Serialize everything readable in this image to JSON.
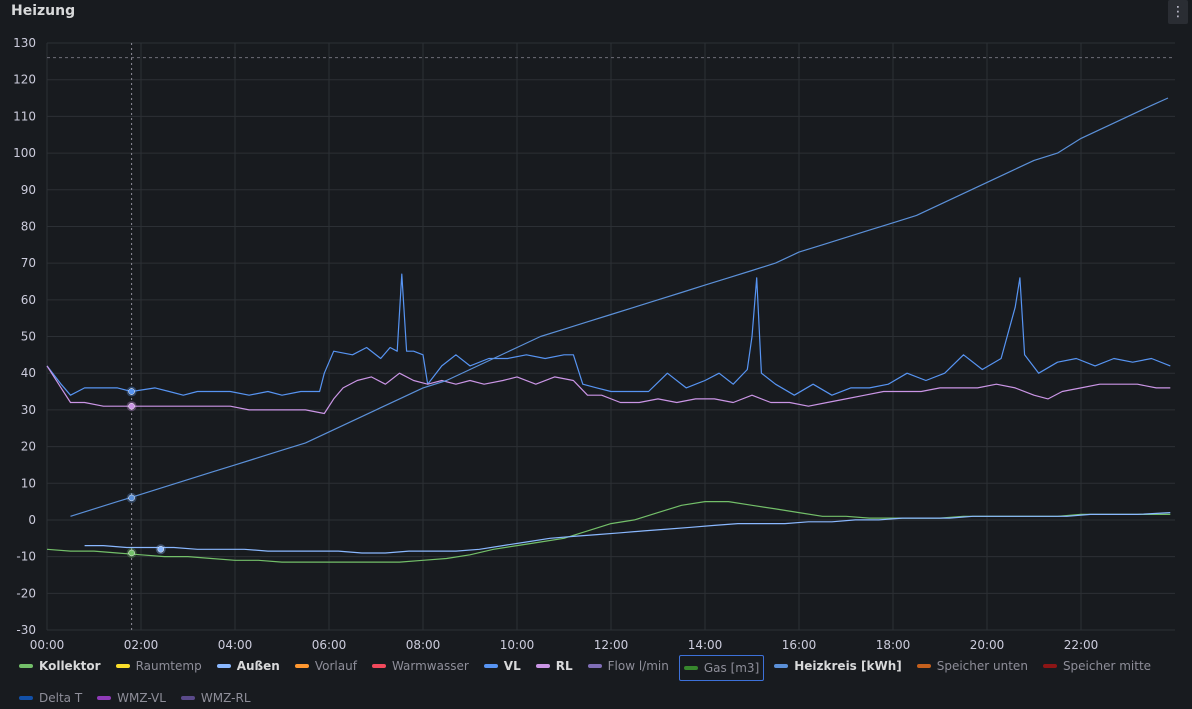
{
  "panel": {
    "title": "Heizung",
    "menu_icon": "⋮"
  },
  "chart_data": {
    "type": "line",
    "xlabel": "",
    "ylabel": "",
    "x_range": [
      "00:00",
      "24:00"
    ],
    "ylim": [
      -30,
      130
    ],
    "x_ticks": [
      "00:00",
      "02:00",
      "04:00",
      "06:00",
      "08:00",
      "10:00",
      "12:00",
      "14:00",
      "16:00",
      "18:00",
      "20:00",
      "22:00"
    ],
    "y_ticks": [
      130,
      120,
      110,
      100,
      90,
      80,
      70,
      60,
      50,
      40,
      30,
      20,
      10,
      0,
      -10,
      -20,
      -30
    ],
    "grid": true,
    "threshold_line": 126,
    "cursor_time": "01:48",
    "series": [
      {
        "name": "VL",
        "color": "#5794f2",
        "points": [
          [
            0,
            42
          ],
          [
            0.3,
            37
          ],
          [
            0.5,
            34
          ],
          [
            0.8,
            36
          ],
          [
            1.2,
            36
          ],
          [
            1.5,
            36
          ],
          [
            1.8,
            35
          ],
          [
            2.3,
            36
          ],
          [
            2.6,
            35
          ],
          [
            2.9,
            34
          ],
          [
            3.2,
            35
          ],
          [
            3.5,
            35
          ],
          [
            3.9,
            35
          ],
          [
            4.3,
            34
          ],
          [
            4.7,
            35
          ],
          [
            5.0,
            34
          ],
          [
            5.4,
            35
          ],
          [
            5.8,
            35
          ],
          [
            5.9,
            40
          ],
          [
            6.1,
            46
          ],
          [
            6.5,
            45
          ],
          [
            6.8,
            47
          ],
          [
            7.1,
            44
          ],
          [
            7.3,
            47
          ],
          [
            7.45,
            46
          ],
          [
            7.55,
            67
          ],
          [
            7.65,
            46
          ],
          [
            7.8,
            46
          ],
          [
            8.0,
            45
          ],
          [
            8.1,
            37
          ],
          [
            8.4,
            42
          ],
          [
            8.7,
            45
          ],
          [
            9.0,
            42
          ],
          [
            9.4,
            44
          ],
          [
            9.8,
            44
          ],
          [
            10.2,
            45
          ],
          [
            10.6,
            44
          ],
          [
            11.0,
            45
          ],
          [
            11.2,
            45
          ],
          [
            11.4,
            37
          ],
          [
            11.7,
            36
          ],
          [
            12.0,
            35
          ],
          [
            12.4,
            35
          ],
          [
            12.8,
            35
          ],
          [
            13.2,
            40
          ],
          [
            13.6,
            36
          ],
          [
            14.0,
            38
          ],
          [
            14.3,
            40
          ],
          [
            14.6,
            37
          ],
          [
            14.9,
            41
          ],
          [
            15.0,
            50
          ],
          [
            15.1,
            66
          ],
          [
            15.2,
            40
          ],
          [
            15.5,
            37
          ],
          [
            15.9,
            34
          ],
          [
            16.3,
            37
          ],
          [
            16.7,
            34
          ],
          [
            17.1,
            36
          ],
          [
            17.5,
            36
          ],
          [
            17.9,
            37
          ],
          [
            18.3,
            40
          ],
          [
            18.7,
            38
          ],
          [
            19.1,
            40
          ],
          [
            19.5,
            45
          ],
          [
            19.9,
            41
          ],
          [
            20.3,
            44
          ],
          [
            20.6,
            58
          ],
          [
            20.7,
            66
          ],
          [
            20.8,
            45
          ],
          [
            21.1,
            40
          ],
          [
            21.5,
            43
          ],
          [
            21.9,
            44
          ],
          [
            22.3,
            42
          ],
          [
            22.7,
            44
          ],
          [
            23.1,
            43
          ],
          [
            23.5,
            44
          ],
          [
            23.9,
            42
          ]
        ]
      },
      {
        "name": "RL",
        "color": "#ca95e5",
        "points": [
          [
            0,
            42
          ],
          [
            0.3,
            36
          ],
          [
            0.5,
            32
          ],
          [
            0.8,
            32
          ],
          [
            1.2,
            31
          ],
          [
            1.5,
            31
          ],
          [
            1.8,
            31
          ],
          [
            2.3,
            31
          ],
          [
            2.7,
            31
          ],
          [
            3.0,
            31
          ],
          [
            3.5,
            31
          ],
          [
            3.9,
            31
          ],
          [
            4.3,
            30
          ],
          [
            4.7,
            30
          ],
          [
            5.1,
            30
          ],
          [
            5.5,
            30
          ],
          [
            5.9,
            29
          ],
          [
            6.1,
            33
          ],
          [
            6.3,
            36
          ],
          [
            6.6,
            38
          ],
          [
            6.9,
            39
          ],
          [
            7.2,
            37
          ],
          [
            7.5,
            40
          ],
          [
            7.8,
            38
          ],
          [
            8.1,
            37
          ],
          [
            8.4,
            38
          ],
          [
            8.7,
            37
          ],
          [
            9.0,
            38
          ],
          [
            9.3,
            37
          ],
          [
            9.7,
            38
          ],
          [
            10.0,
            39
          ],
          [
            10.4,
            37
          ],
          [
            10.8,
            39
          ],
          [
            11.2,
            38
          ],
          [
            11.5,
            34
          ],
          [
            11.8,
            34
          ],
          [
            12.2,
            32
          ],
          [
            12.6,
            32
          ],
          [
            13.0,
            33
          ],
          [
            13.4,
            32
          ],
          [
            13.8,
            33
          ],
          [
            14.2,
            33
          ],
          [
            14.6,
            32
          ],
          [
            15.0,
            34
          ],
          [
            15.4,
            32
          ],
          [
            15.8,
            32
          ],
          [
            16.2,
            31
          ],
          [
            16.6,
            32
          ],
          [
            17.0,
            33
          ],
          [
            17.4,
            34
          ],
          [
            17.8,
            35
          ],
          [
            18.2,
            35
          ],
          [
            18.6,
            35
          ],
          [
            19.0,
            36
          ],
          [
            19.4,
            36
          ],
          [
            19.8,
            36
          ],
          [
            20.2,
            37
          ],
          [
            20.6,
            36
          ],
          [
            21.0,
            34
          ],
          [
            21.3,
            33
          ],
          [
            21.6,
            35
          ],
          [
            22.0,
            36
          ],
          [
            22.4,
            37
          ],
          [
            22.8,
            37
          ],
          [
            23.2,
            37
          ],
          [
            23.6,
            36
          ],
          [
            23.9,
            36
          ]
        ]
      },
      {
        "name": "Heizkreis [kWh]",
        "color": "#5b90d8",
        "points": [
          [
            0.5,
            1
          ],
          [
            1,
            3
          ],
          [
            1.5,
            5
          ],
          [
            2,
            7
          ],
          [
            2.5,
            9
          ],
          [
            3,
            11
          ],
          [
            3.5,
            13
          ],
          [
            4,
            15
          ],
          [
            4.5,
            17
          ],
          [
            5,
            19
          ],
          [
            5.5,
            21
          ],
          [
            6,
            24
          ],
          [
            6.5,
            27
          ],
          [
            7,
            30
          ],
          [
            7.5,
            33
          ],
          [
            8,
            36
          ],
          [
            8.5,
            38
          ],
          [
            9,
            41
          ],
          [
            9.5,
            44
          ],
          [
            10,
            47
          ],
          [
            10.5,
            50
          ],
          [
            11,
            52
          ],
          [
            11.5,
            54
          ],
          [
            12,
            56
          ],
          [
            12.5,
            58
          ],
          [
            13,
            60
          ],
          [
            13.5,
            62
          ],
          [
            14,
            64
          ],
          [
            14.5,
            66
          ],
          [
            15,
            68
          ],
          [
            15.5,
            70
          ],
          [
            16,
            73
          ],
          [
            16.5,
            75
          ],
          [
            17,
            77
          ],
          [
            17.5,
            79
          ],
          [
            18,
            81
          ],
          [
            18.5,
            83
          ],
          [
            19,
            86
          ],
          [
            19.5,
            89
          ],
          [
            20,
            92
          ],
          [
            20.5,
            95
          ],
          [
            21,
            98
          ],
          [
            21.5,
            100
          ],
          [
            22,
            104
          ],
          [
            22.5,
            107
          ],
          [
            23,
            110
          ],
          [
            23.5,
            113
          ],
          [
            23.85,
            115
          ]
        ]
      },
      {
        "name": "Kollektor",
        "color": "#73bf69",
        "points": [
          [
            0,
            -8
          ],
          [
            0.5,
            -8.5
          ],
          [
            1,
            -8.5
          ],
          [
            1.5,
            -9
          ],
          [
            2,
            -9.5
          ],
          [
            2.5,
            -10
          ],
          [
            3,
            -10
          ],
          [
            3.5,
            -10.5
          ],
          [
            4,
            -11
          ],
          [
            4.5,
            -11
          ],
          [
            5,
            -11.5
          ],
          [
            5.5,
            -11.5
          ],
          [
            6,
            -11.5
          ],
          [
            6.5,
            -11.5
          ],
          [
            7,
            -11.5
          ],
          [
            7.5,
            -11.5
          ],
          [
            8,
            -11
          ],
          [
            8.5,
            -10.5
          ],
          [
            9,
            -9.5
          ],
          [
            9.5,
            -8
          ],
          [
            10,
            -7
          ],
          [
            10.5,
            -6
          ],
          [
            11,
            -5
          ],
          [
            11.5,
            -3
          ],
          [
            12,
            -1
          ],
          [
            12.5,
            0
          ],
          [
            13,
            2
          ],
          [
            13.5,
            4
          ],
          [
            14,
            5
          ],
          [
            14.5,
            5
          ],
          [
            15,
            4
          ],
          [
            15.5,
            3
          ],
          [
            16,
            2
          ],
          [
            16.5,
            1
          ],
          [
            17,
            1
          ],
          [
            17.5,
            0.5
          ],
          [
            18,
            0.5
          ],
          [
            18.5,
            0.5
          ],
          [
            19,
            0.5
          ],
          [
            19.5,
            1
          ],
          [
            20,
            1
          ],
          [
            20.5,
            1
          ],
          [
            21,
            1
          ],
          [
            21.5,
            1
          ],
          [
            22,
            1.5
          ],
          [
            22.5,
            1.5
          ],
          [
            23,
            1.5
          ],
          [
            23.5,
            1.5
          ],
          [
            23.9,
            1.5
          ]
        ]
      },
      {
        "name": "Außen",
        "color": "#8ab8ff",
        "points": [
          [
            0.8,
            -7
          ],
          [
            1.2,
            -7
          ],
          [
            1.7,
            -7.5
          ],
          [
            2.2,
            -7.5
          ],
          [
            2.7,
            -7.5
          ],
          [
            3.2,
            -8
          ],
          [
            3.7,
            -8
          ],
          [
            4.2,
            -8
          ],
          [
            4.7,
            -8.5
          ],
          [
            5.2,
            -8.5
          ],
          [
            5.7,
            -8.5
          ],
          [
            6.2,
            -8.5
          ],
          [
            6.7,
            -9
          ],
          [
            7.2,
            -9
          ],
          [
            7.7,
            -8.5
          ],
          [
            8.2,
            -8.5
          ],
          [
            8.7,
            -8.5
          ],
          [
            9.2,
            -8
          ],
          [
            9.7,
            -7
          ],
          [
            10.2,
            -6
          ],
          [
            10.7,
            -5
          ],
          [
            11.2,
            -4.5
          ],
          [
            11.7,
            -4
          ],
          [
            12.2,
            -3.5
          ],
          [
            12.7,
            -3
          ],
          [
            13.2,
            -2.5
          ],
          [
            13.7,
            -2
          ],
          [
            14.2,
            -1.5
          ],
          [
            14.7,
            -1
          ],
          [
            15.2,
            -1
          ],
          [
            15.7,
            -1
          ],
          [
            16.2,
            -0.5
          ],
          [
            16.7,
            -0.5
          ],
          [
            17.2,
            0
          ],
          [
            17.7,
            0
          ],
          [
            18.2,
            0.5
          ],
          [
            18.7,
            0.5
          ],
          [
            19.2,
            0.5
          ],
          [
            19.7,
            1
          ],
          [
            20.2,
            1
          ],
          [
            20.7,
            1
          ],
          [
            21.2,
            1
          ],
          [
            21.7,
            1
          ],
          [
            22.2,
            1.5
          ],
          [
            22.7,
            1.5
          ],
          [
            23.2,
            1.5
          ],
          [
            23.9,
            2
          ]
        ]
      }
    ],
    "cursor_markers": [
      {
        "series": "VL",
        "value": 35,
        "color": "#5794f2"
      },
      {
        "series": "RL",
        "value": 31,
        "color": "#ca95e5"
      },
      {
        "series": "Heizkreis [kWh]",
        "value": 6,
        "color": "#5b90d8"
      },
      {
        "series": "Kollektor",
        "value": -9,
        "color": "#73bf69"
      }
    ],
    "extra_marker": {
      "series": "Außen",
      "time": 2.42,
      "value": -8,
      "color": "#8ab8ff"
    }
  },
  "legend": [
    {
      "label": "Kollektor",
      "color": "#73bf69",
      "state": "active"
    },
    {
      "label": "Raumtemp",
      "color": "#fade2a",
      "state": "hidden"
    },
    {
      "label": "Außen",
      "color": "#8ab8ff",
      "state": "active"
    },
    {
      "label": "Vorlauf",
      "color": "#ff9830",
      "state": "hidden"
    },
    {
      "label": "Warmwasser",
      "color": "#f2495c",
      "state": "hidden"
    },
    {
      "label": "VL",
      "color": "#5794f2",
      "state": "active"
    },
    {
      "label": "RL",
      "color": "#ca95e5",
      "state": "active"
    },
    {
      "label": "Flow l/min",
      "color": "#806eb7",
      "state": "hidden"
    },
    {
      "label": "Gas [m3]",
      "color": "#37872d",
      "state": "hidden",
      "focused": true
    },
    {
      "label": "Heizkreis [kWh]",
      "color": "#5b90d8",
      "state": "active"
    },
    {
      "label": "Speicher unten",
      "color": "#c4601d",
      "state": "hidden"
    },
    {
      "label": "Speicher mitte",
      "color": "#8c1515",
      "state": "hidden"
    },
    {
      "label": "Delta T",
      "color": "#1250a8",
      "state": "hidden"
    },
    {
      "label": "WMZ-VL",
      "color": "#8f3bb8",
      "state": "hidden"
    },
    {
      "label": "WMZ-RL",
      "color": "#5a4a8a",
      "state": "hidden"
    }
  ]
}
